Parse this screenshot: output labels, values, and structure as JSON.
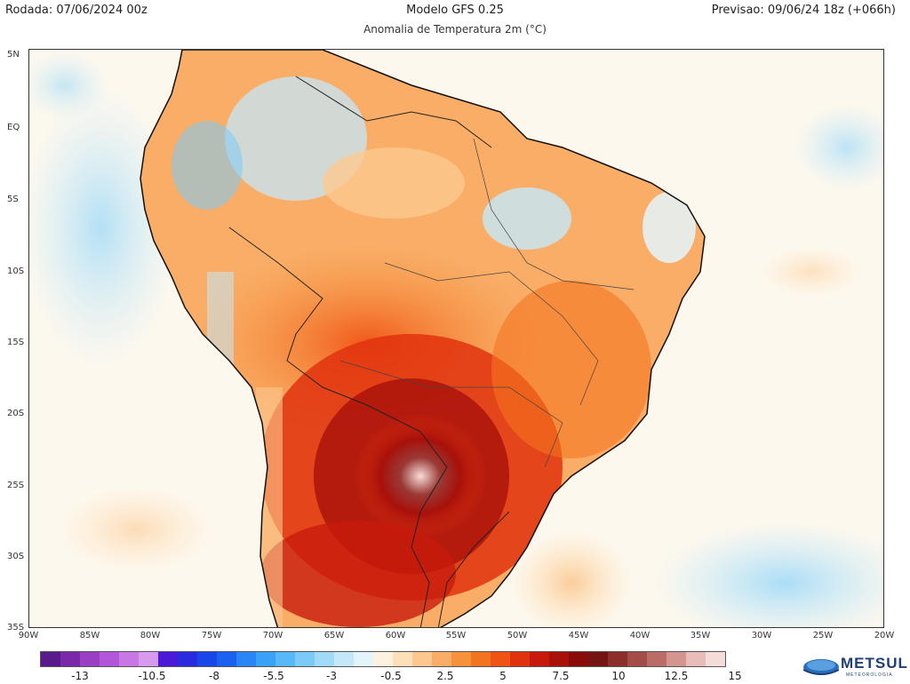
{
  "header": {
    "run": "Rodada: 07/06/2024 00z",
    "model": "Modelo GFS 0.25",
    "variable": "Anomalia de Temperatura 2m (°C)",
    "forecast": "Previsao: 09/06/24 18z (+066h)"
  },
  "map": {
    "region": "South America",
    "lat_labels": [
      "5N",
      "EQ",
      "5S",
      "10S",
      "15S",
      "20S",
      "25S",
      "30S",
      "35S"
    ],
    "lon_labels": [
      "90W",
      "85W",
      "80W",
      "75W",
      "70W",
      "65W",
      "60W",
      "55W",
      "50W",
      "45W",
      "40W",
      "35W",
      "30W",
      "25W",
      "20W"
    ],
    "extent": {
      "lon": [
        -90,
        -20
      ],
      "lat": [
        -35,
        5
      ]
    }
  },
  "colorbar": {
    "labels": [
      "-13",
      "-10.5",
      "-8",
      "-5.5",
      "-3",
      "-0.5",
      "2.5",
      "5",
      "7.5",
      "10",
      "12.5",
      "15"
    ],
    "colors": [
      "#5a1a8a",
      "#7a2aa8",
      "#9a3ec4",
      "#b456d8",
      "#c878e4",
      "#d89aec",
      "#4a1ad8",
      "#2a2ae0",
      "#1846e8",
      "#1a62f0",
      "#2a86f4",
      "#3aa2f6",
      "#58b8f8",
      "#7ccaf8",
      "#a0daf8",
      "#c4e8fa",
      "#e4f4fc",
      "#fdf2e0",
      "#fde0b8",
      "#fcc890",
      "#f9ad66",
      "#f6923c",
      "#f37420",
      "#f05414",
      "#e0320e",
      "#c81a0c",
      "#a8100a",
      "#8a0c0a",
      "#761414",
      "#8c2e2c",
      "#a44c48",
      "#bc6c66",
      "#d49490",
      "#e8bcb8",
      "#f4dcd8"
    ],
    "value_range": [
      -14,
      15
    ],
    "units": "°C"
  },
  "brand": {
    "name": "METSUL",
    "tagline": "METEOROLOGIA",
    "color": "#1d3f73"
  }
}
